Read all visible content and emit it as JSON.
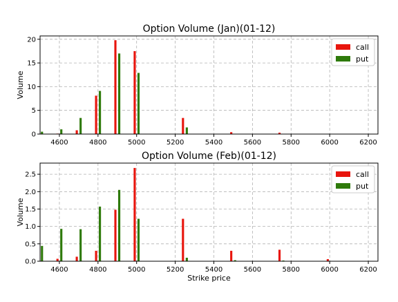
{
  "chart_data": [
    {
      "type": "bar",
      "title": "Option Volume (Jan)(01-12)",
      "xlabel": "",
      "ylabel": "Volume",
      "xlim": [
        4500,
        6250
      ],
      "ylim": [
        0,
        20.7
      ],
      "xticks": [
        4600,
        4800,
        5000,
        5200,
        5400,
        5600,
        5800,
        6000,
        6200
      ],
      "yticks": [
        0,
        5,
        10,
        15,
        20
      ],
      "ytick_labels": [
        "0",
        "5",
        "10",
        "15",
        "20"
      ],
      "grid": true,
      "legend_position": "top-right",
      "series": [
        {
          "name": "call",
          "color": "#e8150d",
          "x": [
            4500,
            4600,
            4700,
            4800,
            4900,
            5000,
            5250,
            5500,
            5750
          ],
          "values": [
            0,
            0.1,
            0.8,
            8.1,
            19.8,
            17.5,
            3.4,
            0.4,
            0.3
          ]
        },
        {
          "name": "put",
          "color": "#2e7a0a",
          "x": [
            4500,
            4600,
            4700,
            4800,
            4900,
            5000,
            5250,
            5500,
            5750
          ],
          "values": [
            0.5,
            1.0,
            3.4,
            9.1,
            17.0,
            12.9,
            1.4,
            0,
            0
          ]
        }
      ]
    },
    {
      "type": "bar",
      "title": "Option Volume (Feb)(01-12)",
      "xlabel": "Strike price",
      "ylabel": "Volume",
      "xlim": [
        4500,
        6250
      ],
      "ylim": [
        0,
        2.82
      ],
      "xticks": [
        4600,
        4800,
        5000,
        5200,
        5400,
        5600,
        5800,
        6000,
        6200
      ],
      "yticks": [
        0,
        0.5,
        1.0,
        1.5,
        2.0,
        2.5
      ],
      "ytick_labels": [
        "0.0",
        "0.5",
        "1.0",
        "1.5",
        "2.0",
        "2.5"
      ],
      "grid": true,
      "legend_position": "top-right",
      "series": [
        {
          "name": "call",
          "color": "#e8150d",
          "x": [
            4500,
            4600,
            4700,
            4800,
            4900,
            5000,
            5250,
            5500,
            5750,
            6000
          ],
          "values": [
            0,
            0.07,
            0.13,
            0.3,
            1.48,
            2.68,
            1.22,
            0.3,
            0.33,
            0.06
          ]
        },
        {
          "name": "put",
          "color": "#2e7a0a",
          "x": [
            4500,
            4600,
            4700,
            4800,
            4900,
            5000,
            5250,
            5500,
            5750,
            6000
          ],
          "values": [
            0.44,
            0.93,
            0.92,
            1.57,
            2.05,
            1.22,
            0.1,
            0.03,
            0.02,
            0.01
          ]
        }
      ]
    }
  ]
}
